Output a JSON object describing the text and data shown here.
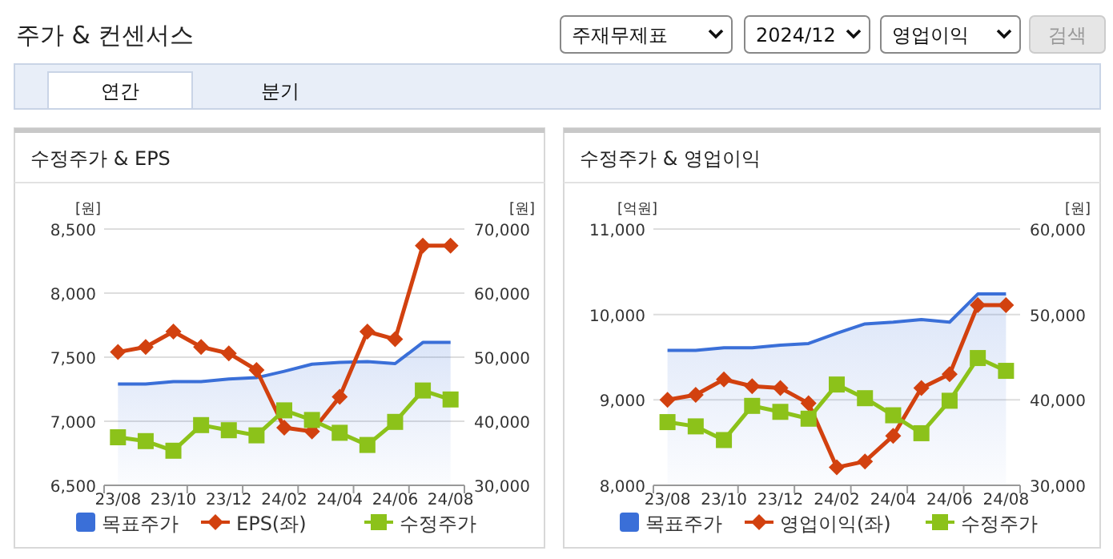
{
  "chart_data": [
    {
      "type": "other",
      "title": "주가 & 컨센서스",
      "annotations": [
        "주재무제표",
        "2024/12",
        "영업이익",
        "검색",
        "연간",
        "분기"
      ]
    },
    {
      "type": "line",
      "title": "수정주가 & EPS",
      "ylabel": "[원]",
      "y2label": "[원]",
      "categories": [
        "23/08",
        null,
        "23/10",
        null,
        "23/12",
        null,
        "24/02",
        null,
        "24/04",
        null,
        "24/06",
        null,
        "24/08"
      ],
      "series": [
        {
          "name": "목표주가",
          "type": "area",
          "axis": "y2",
          "marker": "none",
          "color": "#3a6fd8",
          "values": [
            45800,
            45800,
            46200,
            46200,
            46600,
            46800,
            47800,
            48900,
            49200,
            49300,
            49000,
            52300,
            52300
          ]
        },
        {
          "name": "EPS(좌)",
          "type": "line",
          "axis": "y",
          "marker": "diamond",
          "color": "#d2410f",
          "values": [
            7540,
            7580,
            7700,
            7580,
            7530,
            7400,
            6950,
            6920,
            7190,
            7700,
            7640,
            8370,
            8370
          ]
        },
        {
          "name": "수정주가",
          "type": "line",
          "axis": "y2",
          "marker": "square",
          "color": "#8cc21a",
          "values": [
            37500,
            36900,
            35400,
            39400,
            38600,
            37800,
            41700,
            40200,
            38200,
            36300,
            39900,
            44800,
            43400
          ]
        }
      ],
      "ylim": [
        6500,
        8500
      ],
      "yticks": [
        {
          "value": 6500,
          "label": "6,500"
        },
        {
          "value": 7000,
          "label": "7,000"
        },
        {
          "value": 7500,
          "label": "7,500"
        },
        {
          "value": 8000,
          "label": "8,000"
        },
        {
          "value": 8500,
          "label": "8,500"
        }
      ],
      "y2lim": [
        30000,
        70000
      ],
      "y2ticks": [
        {
          "value": 30000,
          "label": "30,000"
        },
        {
          "value": 40000,
          "label": "40,000"
        },
        {
          "value": 50000,
          "label": "50,000"
        },
        {
          "value": 60000,
          "label": "60,000"
        },
        {
          "value": 70000,
          "label": "70,000"
        }
      ],
      "grid": "y",
      "legend": "bottom"
    },
    {
      "type": "line",
      "title": "수정주가 & 영업이익",
      "ylabel": "[억원]",
      "y2label": "[원]",
      "categories": [
        "23/08",
        null,
        "23/10",
        null,
        "23/12",
        null,
        "24/02",
        null,
        "24/04",
        null,
        "24/06",
        null,
        "24/08"
      ],
      "series": [
        {
          "name": "목표주가",
          "type": "area",
          "axis": "y2",
          "marker": "none",
          "color": "#3a6fd8",
          "values": [
            45800,
            45800,
            46100,
            46100,
            46400,
            46600,
            47800,
            48900,
            49100,
            49400,
            49100,
            52400,
            52400
          ]
        },
        {
          "name": "영업이익(좌)",
          "type": "line",
          "axis": "y",
          "marker": "diamond",
          "color": "#d2410f",
          "values": [
            9000,
            9060,
            9240,
            9160,
            9140,
            8960,
            8210,
            8280,
            8580,
            9140,
            9300,
            10110,
            10110
          ]
        },
        {
          "name": "수정주가",
          "type": "line",
          "axis": "y2",
          "marker": "square",
          "color": "#8cc21a",
          "values": [
            37400,
            36900,
            35300,
            39300,
            38600,
            37800,
            41800,
            40200,
            38200,
            36100,
            39900,
            44900,
            43400
          ]
        }
      ],
      "ylim": [
        8000,
        11000
      ],
      "yticks": [
        {
          "value": 8000,
          "label": "8,000"
        },
        {
          "value": 9000,
          "label": "9,000"
        },
        {
          "value": 10000,
          "label": "10,000"
        },
        {
          "value": 11000,
          "label": "11,000"
        }
      ],
      "y2lim": [
        30000,
        60000
      ],
      "y2ticks": [
        {
          "value": 30000,
          "label": "30,000"
        },
        {
          "value": 40000,
          "label": "40,000"
        },
        {
          "value": 50000,
          "label": "50,000"
        },
        {
          "value": 60000,
          "label": "60,000"
        }
      ],
      "grid": "y",
      "legend": "bottom"
    }
  ]
}
